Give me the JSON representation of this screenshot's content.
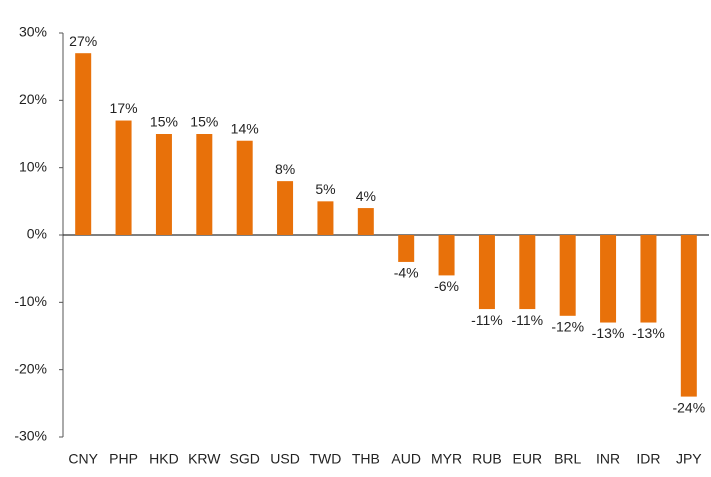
{
  "chart_data": {
    "type": "bar",
    "categories": [
      "CNY",
      "PHP",
      "HKD",
      "KRW",
      "SGD",
      "USD",
      "TWD",
      "THB",
      "AUD",
      "MYR",
      "RUB",
      "EUR",
      "BRL",
      "INR",
      "IDR",
      "JPY"
    ],
    "values": [
      27,
      17,
      15,
      15,
      14,
      8,
      5,
      4,
      -4,
      -6,
      -11,
      -11,
      -12,
      -13,
      -13,
      -24
    ],
    "value_labels": [
      "27%",
      "17%",
      "15%",
      "15%",
      "14%",
      "8%",
      "5%",
      "4%",
      "-4%",
      "-6%",
      "-11%",
      "-11%",
      "-12%",
      "-13%",
      "-13%",
      "-24%"
    ],
    "color": "#e8710a",
    "ylim": [
      -30,
      30
    ],
    "yticks": [
      {
        "value": -30,
        "label": "-30%"
      },
      {
        "value": -20,
        "label": "-20%"
      },
      {
        "value": -10,
        "label": "-10%"
      },
      {
        "value": 0,
        "label": "0%"
      },
      {
        "value": 10,
        "label": "10%"
      },
      {
        "value": 20,
        "label": "20%"
      },
      {
        "value": 30,
        "label": "30%"
      }
    ],
    "grid": false
  }
}
